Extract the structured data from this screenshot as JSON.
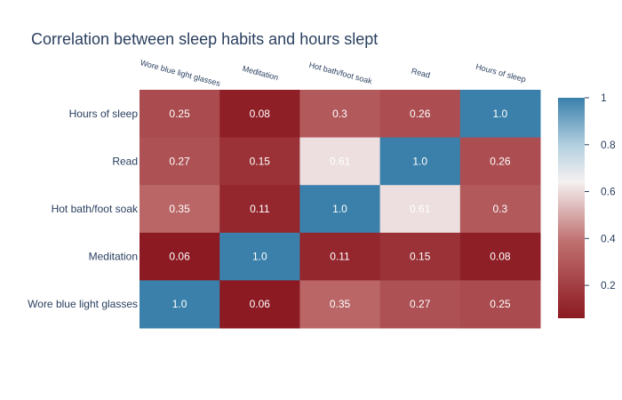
{
  "chart_data": {
    "type": "heatmap",
    "title": "Correlation between sleep habits and hours slept",
    "x_categories": [
      "Wore blue light glasses",
      "Meditation",
      "Hot bath/foot soak",
      "Read",
      "Hours of sleep"
    ],
    "y_categories": [
      "Hours of sleep",
      "Read",
      "Hot bath/foot soak",
      "Meditation",
      "Wore blue light glasses"
    ],
    "values": [
      [
        0.25,
        0.08,
        0.3,
        0.26,
        1.0
      ],
      [
        0.27,
        0.15,
        0.61,
        1.0,
        0.26
      ],
      [
        0.35,
        0.11,
        1.0,
        0.61,
        0.3
      ],
      [
        0.06,
        1.0,
        0.11,
        0.15,
        0.08
      ],
      [
        1.0,
        0.06,
        0.35,
        0.27,
        0.25
      ]
    ],
    "cell_labels": [
      [
        "0.25",
        "0.08",
        "0.3",
        "0.26",
        "1.0"
      ],
      [
        "0.27",
        "0.15",
        "0.61",
        "1.0",
        "0.26"
      ],
      [
        "0.35",
        "0.11",
        "1.0",
        "0.61",
        "0.3"
      ],
      [
        "0.06",
        "1.0",
        "0.11",
        "0.15",
        "0.08"
      ],
      [
        "1.0",
        "0.06",
        "0.35",
        "0.27",
        "0.25"
      ]
    ],
    "zrange": [
      0.06,
      1.0
    ],
    "colorscale": [
      [
        0.0,
        "#8c1a22"
      ],
      [
        0.35,
        "#c07070"
      ],
      [
        0.62,
        "#f4f0f0"
      ],
      [
        0.78,
        "#b5d1e0"
      ],
      [
        1.0,
        "#3a80ab"
      ]
    ],
    "colorbar_ticks": [
      0.2,
      0.4,
      0.6,
      0.8,
      1
    ],
    "colorbar_tick_labels": [
      "0.2",
      "0.4",
      "0.6",
      "0.8",
      "1"
    ],
    "legend": "colorbar-right"
  }
}
